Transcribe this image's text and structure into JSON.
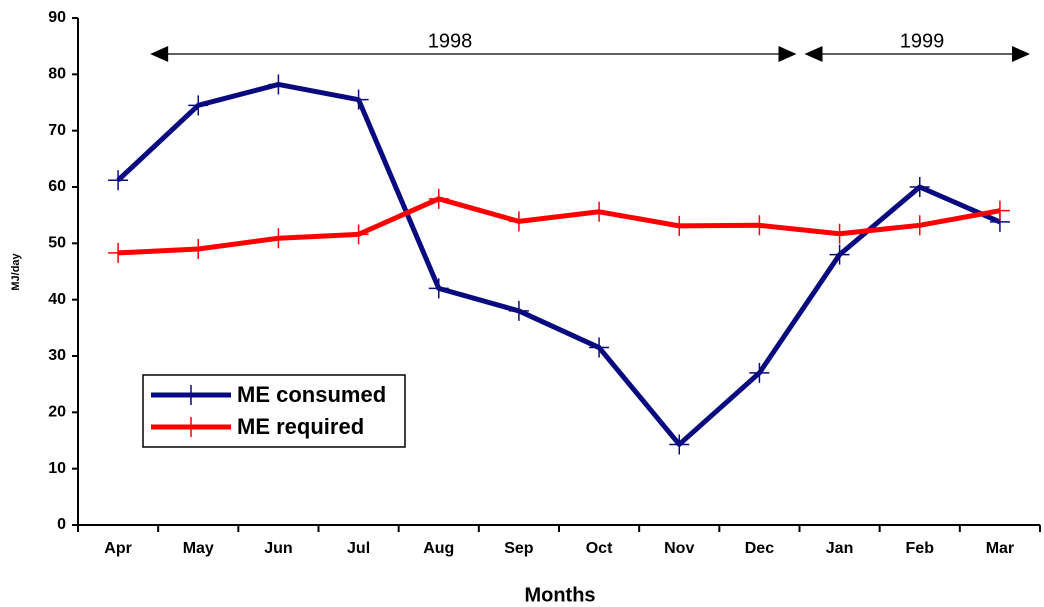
{
  "chart_data": {
    "type": "line",
    "x_label": "Months",
    "y_label": "MJ/day",
    "categories": [
      "Apr",
      "May",
      "Jun",
      "Jul",
      "Aug",
      "Sep",
      "Oct",
      "Nov",
      "Dec",
      "Jan",
      "Feb",
      "Mar"
    ],
    "series": [
      {
        "name": "ME consumed",
        "color": "#0a0a80",
        "values": [
          61.2,
          74.5,
          78.2,
          75.5,
          42,
          38,
          31.5,
          14.3,
          27,
          48,
          60,
          53.8
        ]
      },
      {
        "name": "ME required",
        "color": "#ff0000",
        "values": [
          48.3,
          49,
          50.9,
          51.6,
          57.9,
          53.9,
          55.6,
          53.1,
          53.2,
          51.7,
          53.2,
          55.8
        ]
      }
    ],
    "annotations": [
      "1998",
      "1999"
    ],
    "ylim": [
      0,
      90
    ],
    "yticks": [
      0,
      10,
      20,
      30,
      40,
      50,
      60,
      70,
      80,
      90
    ],
    "grid": false,
    "legend": "lower left"
  }
}
